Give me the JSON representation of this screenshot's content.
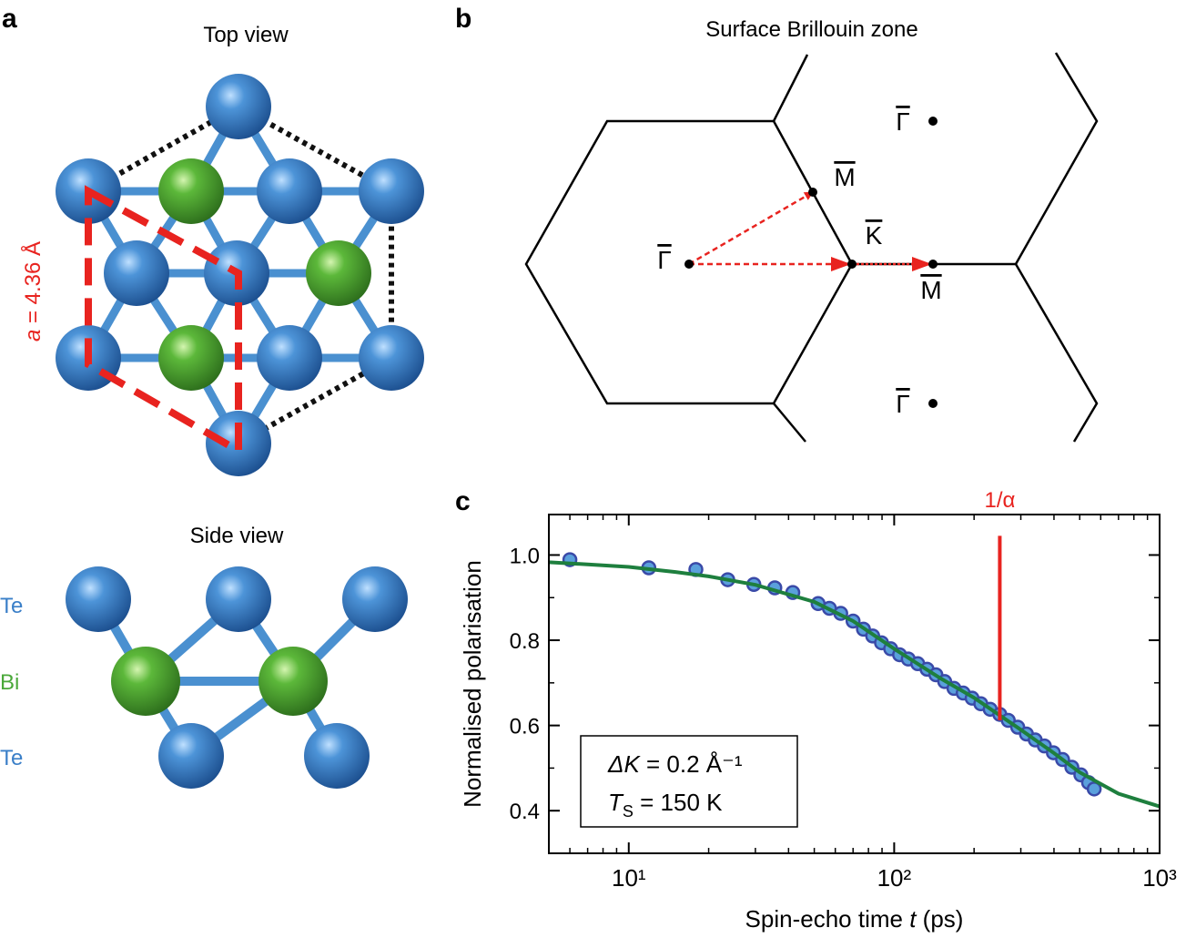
{
  "panels": {
    "a": {
      "label": "a",
      "top_title": "Top view",
      "lattice_label": {
        "var": "a",
        "rest": " = 4.36 Å"
      },
      "side_title": "Side view",
      "layers": [
        "Te",
        "Bi",
        "Te"
      ]
    },
    "b": {
      "label": "b",
      "title": "Surface Brillouin zone",
      "points": [
        "Γ",
        "M",
        "K",
        "M",
        "Γ",
        "Γ"
      ]
    }
  },
  "chart_data": {
    "type": "scatter",
    "panel_label": "c",
    "ylabel": "Normalised polarisation",
    "xlabel": [
      "Spin-echo time ",
      "t",
      " (ps)"
    ],
    "log_x": true,
    "xlim": [
      5,
      1000
    ],
    "ylim": [
      0.3,
      1.095
    ],
    "xticks": [
      {
        "value": 10,
        "label": "10¹"
      },
      {
        "value": 100,
        "label": "10²"
      },
      {
        "value": 1000,
        "label": "10³"
      }
    ],
    "xminorticks": [
      6,
      7,
      8,
      9,
      20,
      30,
      40,
      50,
      60,
      70,
      80,
      90,
      200,
      300,
      400,
      500,
      600,
      700,
      800,
      900
    ],
    "yticks": [
      0.4,
      0.6,
      0.8,
      {
        "value": 1,
        "label": "1.0"
      }
    ],
    "yminorticks": [
      0.5,
      0.7,
      0.9
    ],
    "series": [
      {
        "kind": "points",
        "color": "#5aa0dc",
        "edge": "#3a4aa8",
        "x": [
          6.0,
          11.9,
          17.9,
          23.6,
          29.6,
          35.5,
          41.5,
          51.7,
          57,
          62.9,
          70,
          76.6,
          83,
          89.6,
          97,
          104.8,
          113,
          122.7,
          133,
          143.6,
          155,
          168,
          182,
          196.6,
          212,
          230,
          250,
          269,
          292,
          315,
          340,
          368,
          398,
          431,
          467,
          505,
          540,
          567
        ],
        "values": [
          0.989,
          0.97,
          0.966,
          0.942,
          0.931,
          0.923,
          0.912,
          0.886,
          0.875,
          0.863,
          0.845,
          0.826,
          0.81,
          0.794,
          0.78,
          0.766,
          0.756,
          0.745,
          0.732,
          0.719,
          0.703,
          0.687,
          0.676,
          0.664,
          0.651,
          0.638,
          0.626,
          0.612,
          0.596,
          0.58,
          0.566,
          0.552,
          0.536,
          0.52,
          0.502,
          0.484,
          0.466,
          0.451
        ]
      },
      {
        "kind": "line",
        "color": "#1e7f3e",
        "x": [
          5,
          7,
          10,
          15,
          20,
          30,
          50,
          70,
          100,
          150,
          200,
          300,
          400,
          500,
          700,
          1000
        ],
        "values": [
          0.983,
          0.978,
          0.972,
          0.96,
          0.95,
          0.93,
          0.89,
          0.845,
          0.78,
          0.71,
          0.665,
          0.59,
          0.535,
          0.49,
          0.44,
          0.41
        ]
      }
    ],
    "marker": {
      "label": "1/α",
      "x": 250,
      "ymin": 0.612,
      "ymax": 1.045,
      "color": "#e8231f"
    },
    "annotations": [
      {
        "var": "ΔK",
        "rest": " = 0.2 Å⁻¹"
      },
      {
        "var": "T",
        "sub": "S",
        "rest": " = 150 K"
      }
    ]
  }
}
